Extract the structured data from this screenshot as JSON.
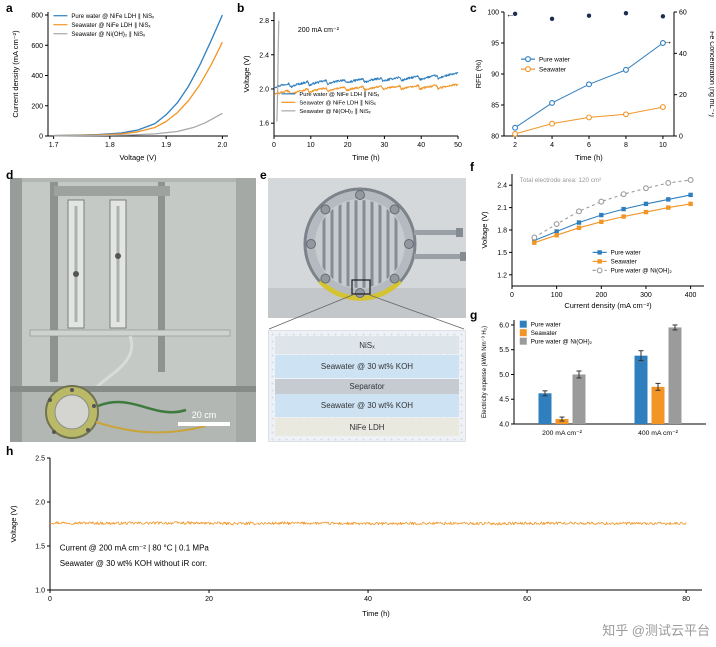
{
  "labels": {
    "a": "a",
    "b": "b",
    "c": "c",
    "d": "d",
    "e": "e",
    "f": "f",
    "g": "g",
    "h": "h"
  },
  "photo_d": {
    "scale_bar": "20 cm"
  },
  "panel_e": {
    "layers": [
      {
        "label": "NiSₓ"
      },
      {
        "label": "Seawater @ 30 wt% KOH"
      },
      {
        "label": "Separator"
      },
      {
        "label": "Seawater @ 30 wt% KOH"
      },
      {
        "label": "NiFe LDH"
      }
    ]
  },
  "watermark": {
    "text": "知乎 @测试云平台"
  },
  "colors": {
    "pure_water": "#2f7fbf",
    "seawater": "#f29526",
    "nioh2": "#9b9b9b",
    "rfe_marker": "#1d2d50"
  },
  "chart_data": [
    {
      "id": "a",
      "type": "line",
      "xlabel": "Voltage (V)",
      "ylabel": "Current density (mA cm⁻²)",
      "xlim": [
        1.69,
        2.01
      ],
      "ylim": [
        0,
        820
      ],
      "xticks": [
        "1.7",
        "1.8",
        "1.9",
        "2.0"
      ],
      "yticks": [
        "0",
        "200",
        "400",
        "600",
        "800"
      ],
      "series": [
        {
          "name": "Pure water @ NiFe LDH ∥ NiSₓ",
          "color": "#2f7fbf",
          "marker": "none",
          "points": [
            [
              1.7,
              3
            ],
            [
              1.74,
              5
            ],
            [
              1.78,
              10
            ],
            [
              1.82,
              20
            ],
            [
              1.85,
              40
            ],
            [
              1.88,
              82
            ],
            [
              1.9,
              140
            ],
            [
              1.92,
              220
            ],
            [
              1.94,
              330
            ],
            [
              1.96,
              470
            ],
            [
              1.98,
              630
            ],
            [
              2.0,
              800
            ]
          ]
        },
        {
          "name": "Seawater @ NiFe LDH ∥ NiSₓ",
          "color": "#f29526",
          "marker": "none",
          "points": [
            [
              1.7,
              2
            ],
            [
              1.74,
              4
            ],
            [
              1.78,
              7
            ],
            [
              1.82,
              14
            ],
            [
              1.85,
              28
            ],
            [
              1.88,
              56
            ],
            [
              1.9,
              96
            ],
            [
              1.92,
              155
            ],
            [
              1.94,
              235
            ],
            [
              1.96,
              340
            ],
            [
              1.98,
              470
            ],
            [
              2.0,
              620
            ]
          ]
        },
        {
          "name": "Seawater @ Ni(OH)₂ ∥ NiSₓ",
          "color": "#a8a8a8",
          "marker": "none",
          "points": [
            [
              1.7,
              1
            ],
            [
              1.78,
              3
            ],
            [
              1.84,
              7
            ],
            [
              1.88,
              14
            ],
            [
              1.92,
              30
            ],
            [
              1.95,
              58
            ],
            [
              1.97,
              88
            ],
            [
              2.0,
              150
            ]
          ]
        }
      ],
      "legend": {
        "nx": 0.03,
        "ny": 0.03,
        "entries": [
          0,
          1,
          2
        ],
        "fs": 6,
        "dy": 9
      }
    },
    {
      "id": "b",
      "type": "line",
      "xlabel": "Time (h)",
      "ylabel": "Voltage (V)",
      "xlim": [
        0,
        50
      ],
      "ylim": [
        1.45,
        2.9
      ],
      "xticks": [
        "0",
        "10",
        "20",
        "30",
        "40",
        "50"
      ],
      "yticks": [
        "1.6",
        "2.0",
        "2.4",
        "2.8"
      ],
      "series": [
        {
          "name": "Pure water @ NiFe LDH ∥ NiSₓ",
          "color": "#2f7fbf",
          "marker": "none",
          "width": 1,
          "noise": {
            "amp": 0.012,
            "n": 400
          },
          "points": [
            [
              0,
              2.02
            ],
            [
              2,
              2.045
            ],
            [
              4,
              2.065
            ],
            [
              4.6,
              2.022
            ],
            [
              6,
              2.05
            ],
            [
              8,
              2.07
            ],
            [
              9.2,
              2.088
            ],
            [
              9.6,
              2.042
            ],
            [
              11,
              2.068
            ],
            [
              13,
              2.088
            ],
            [
              14.2,
              2.098
            ],
            [
              14.6,
              2.058
            ],
            [
              16,
              2.078
            ],
            [
              18,
              2.098
            ],
            [
              19.2,
              2.108
            ],
            [
              19.6,
              2.068
            ],
            [
              21,
              2.088
            ],
            [
              23,
              2.108
            ],
            [
              24.2,
              2.118
            ],
            [
              24.6,
              2.078
            ],
            [
              26,
              2.098
            ],
            [
              28,
              2.118
            ],
            [
              29.2,
              2.128
            ],
            [
              29.6,
              2.088
            ],
            [
              31,
              2.108
            ],
            [
              33,
              2.128
            ],
            [
              34.2,
              2.138
            ],
            [
              34.6,
              2.098
            ],
            [
              36,
              2.118
            ],
            [
              38,
              2.138
            ],
            [
              39.2,
              2.148
            ],
            [
              39.6,
              2.108
            ],
            [
              41,
              2.128
            ],
            [
              43,
              2.148
            ],
            [
              44.2,
              2.158
            ],
            [
              44.6,
              2.118
            ],
            [
              46,
              2.148
            ],
            [
              48,
              2.168
            ],
            [
              49.2,
              2.178
            ],
            [
              50,
              2.185
            ]
          ]
        },
        {
          "name": "Seawater @ NiFe LDH ∥ NiSₓ",
          "color": "#f29526",
          "marker": "none",
          "width": 1,
          "noise": {
            "amp": 0.012,
            "n": 400
          },
          "points": [
            [
              0,
              1.935
            ],
            [
              2,
              1.96
            ],
            [
              4,
              1.98
            ],
            [
              4.6,
              1.937
            ],
            [
              6,
              1.965
            ],
            [
              8,
              1.985
            ],
            [
              9.2,
              2.003
            ],
            [
              9.6,
              1.957
            ],
            [
              11,
              1.983
            ],
            [
              13,
              2.003
            ],
            [
              14.2,
              2.013
            ],
            [
              14.6,
              1.973
            ],
            [
              16,
              1.993
            ],
            [
              18,
              2.013
            ],
            [
              19.2,
              2.023
            ],
            [
              19.6,
              1.983
            ],
            [
              21,
              2.003
            ],
            [
              23,
              2.018
            ],
            [
              24.2,
              2.028
            ],
            [
              24.6,
              1.988
            ],
            [
              26,
              2.008
            ],
            [
              28,
              2.023
            ],
            [
              29.2,
              2.033
            ],
            [
              29.6,
              1.993
            ],
            [
              31,
              2.013
            ],
            [
              33,
              2.028
            ],
            [
              34.2,
              2.038
            ],
            [
              34.6,
              1.998
            ],
            [
              36,
              2.013
            ],
            [
              38,
              2.028
            ],
            [
              39.2,
              2.038
            ],
            [
              39.6,
              1.998
            ],
            [
              41,
              2.018
            ],
            [
              43,
              2.033
            ],
            [
              44.2,
              2.043
            ],
            [
              44.6,
              2.003
            ],
            [
              46,
              2.023
            ],
            [
              48,
              2.043
            ],
            [
              49.2,
              2.048
            ],
            [
              50,
              2.05
            ]
          ]
        },
        {
          "name": "Seawater @ Ni(OH)₂ ∥ NiSₓ",
          "color": "#a8a8a8",
          "marker": "none",
          "width": 1.2,
          "points": [
            [
              0.8,
              1.62
            ],
            [
              1.0,
              2.0
            ],
            [
              1.15,
              2.45
            ],
            [
              1.3,
              2.8
            ]
          ]
        }
      ],
      "legend": {
        "nx": 0.04,
        "ny": 0.66,
        "entries": [
          0,
          1,
          2
        ],
        "fs": 5.8,
        "dy": 8.5
      },
      "annotations": [
        {
          "nx": 0.13,
          "ny": 0.16,
          "text": "200 mA cm⁻²",
          "fs": 7,
          "an": "start"
        }
      ]
    },
    {
      "id": "c",
      "type": "line",
      "xlabel": "Time (h)",
      "ylabel": "RFE (%)",
      "y2label": "Fe Concentration (ng mL⁻¹)",
      "xlim": [
        1.4,
        10.6
      ],
      "ylim": [
        80,
        100
      ],
      "y2lim": [
        0,
        60
      ],
      "xticks": [
        "2",
        "4",
        "6",
        "8",
        "10"
      ],
      "yticks": [
        "80",
        "85",
        "90",
        "95",
        "100"
      ],
      "y2ticks": [
        "0",
        "20",
        "40",
        "60"
      ],
      "series": [
        {
          "name": "RFE",
          "color": "#1d2d50",
          "marker": "circle",
          "line": false,
          "points": [
            [
              2,
              99.7
            ],
            [
              4,
              98.9
            ],
            [
              6,
              99.4
            ],
            [
              8,
              99.8
            ],
            [
              10,
              99.3
            ]
          ]
        },
        {
          "name": "Pure water",
          "color": "#2f7fbf",
          "marker": "circle-open",
          "axis": "y2",
          "width": 1,
          "points": [
            [
              2,
              4
            ],
            [
              4,
              16
            ],
            [
              6,
              25
            ],
            [
              8,
              32
            ],
            [
              10,
              45
            ]
          ]
        },
        {
          "name": "Seawater",
          "color": "#f29526",
          "marker": "circle-open",
          "axis": "y2",
          "width": 1,
          "points": [
            [
              2,
              1
            ],
            [
              4,
              6
            ],
            [
              6,
              9
            ],
            [
              8,
              10.5
            ],
            [
              10,
              14
            ]
          ]
        }
      ],
      "legend": {
        "nx": 0.1,
        "ny": 0.38,
        "entries": [
          1,
          2
        ],
        "fs": 6.4,
        "dy": 10
      },
      "annotations": [
        {
          "nx": 0.01,
          "ny": 0.04,
          "text": "←",
          "fs": 9,
          "an": "start"
        },
        {
          "nx": 0.99,
          "ny": 0.26,
          "text": "→",
          "fs": 9,
          "an": "end"
        }
      ]
    },
    {
      "id": "f",
      "type": "line",
      "xlabel": "Current density (mA cm⁻²)",
      "ylabel": "Voltage (V)",
      "xlim": [
        0,
        430
      ],
      "ylim": [
        1.05,
        2.55
      ],
      "xticks": [
        "0",
        "100",
        "200",
        "300",
        "400"
      ],
      "yticks": [
        "1.2",
        "1.5",
        "1.8",
        "2.1",
        "2.4"
      ],
      "series": [
        {
          "name": "Pure water",
          "color": "#2f7fbf",
          "marker": "square",
          "width": 1.1,
          "points": [
            [
              50,
              1.66
            ],
            [
              100,
              1.78
            ],
            [
              150,
              1.9
            ],
            [
              200,
              2.0
            ],
            [
              250,
              2.08
            ],
            [
              300,
              2.15
            ],
            [
              350,
              2.21
            ],
            [
              400,
              2.27
            ]
          ]
        },
        {
          "name": "Seawater",
          "color": "#f29526",
          "marker": "square",
          "width": 1.1,
          "points": [
            [
              50,
              1.63
            ],
            [
              100,
              1.73
            ],
            [
              150,
              1.83
            ],
            [
              200,
              1.91
            ],
            [
              250,
              1.98
            ],
            [
              300,
              2.04
            ],
            [
              350,
              2.1
            ],
            [
              400,
              2.15
            ]
          ]
        },
        {
          "name": "Pure water @ Ni(OH)₂",
          "color": "#9b9b9b",
          "marker": "circle-open",
          "dash": "3,3",
          "width": 1.1,
          "points": [
            [
              50,
              1.7
            ],
            [
              100,
              1.88
            ],
            [
              150,
              2.05
            ],
            [
              200,
              2.18
            ],
            [
              250,
              2.28
            ],
            [
              300,
              2.36
            ],
            [
              350,
              2.43
            ],
            [
              400,
              2.47
            ]
          ]
        }
      ],
      "legend": {
        "nx": 0.42,
        "ny": 0.7,
        "entries": [
          0,
          1,
          2
        ],
        "fs": 6.2,
        "dy": 9
      },
      "annotations": [
        {
          "nx": 0.04,
          "ny": 0.07,
          "text": "Total electrode area: 120 cm²",
          "fs": 6.3,
          "fill": "#999999",
          "an": "start"
        }
      ]
    },
    {
      "id": "g",
      "type": "bar",
      "ylabel": "Electricity expense (kWh Nm⁻³ H₂)",
      "categories": [
        "200 mA cm⁻²",
        "400 mA cm⁻²"
      ],
      "ylim": [
        4.0,
        6.1
      ],
      "yticks": [
        "4.0",
        "4.5",
        "5.0",
        "5.5",
        "6.0"
      ],
      "series": [
        {
          "name": "Pure water",
          "color": "#2f7fbf",
          "values": [
            4.62,
            5.38
          ],
          "errors": [
            0.05,
            0.1
          ]
        },
        {
          "name": "Seawater",
          "color": "#f29526",
          "values": [
            4.1,
            4.75
          ],
          "errors": [
            0.04,
            0.07
          ]
        },
        {
          "name": "Pure water @ Ni(OH)₂",
          "color": "#9b9b9b",
          "values": [
            5.0,
            5.95
          ],
          "errors": [
            0.07,
            0.05
          ]
        }
      ],
      "legend": {
        "nx": 0.03,
        "ny": 0.05,
        "entries": [
          0,
          1,
          2
        ],
        "fs": 6.2,
        "dy": 8.5,
        "swatch": true
      }
    },
    {
      "id": "h",
      "type": "line",
      "xlabel": "Time (h)",
      "ylabel": "Voltage (V)",
      "xlim": [
        0,
        82
      ],
      "ylim": [
        1.0,
        2.5
      ],
      "xticks": [
        "0",
        "20",
        "40",
        "60",
        "80"
      ],
      "yticks": [
        "1.0",
        "1.5",
        "2.0",
        "2.5"
      ],
      "series": [
        {
          "name": "Seawater @ 30 wt% KOH",
          "color": "#f29526",
          "marker": "none",
          "width": 0.8,
          "noise": {
            "amp": 0.016,
            "n": 800
          },
          "points": [
            [
              0,
              1.765
            ],
            [
              8,
              1.758
            ],
            [
              16,
              1.762
            ],
            [
              24,
              1.755
            ],
            [
              32,
              1.76
            ],
            [
              40,
              1.753
            ],
            [
              48,
              1.758
            ],
            [
              56,
              1.755
            ],
            [
              64,
              1.76
            ],
            [
              72,
              1.756
            ],
            [
              80,
              1.754
            ]
          ]
        }
      ],
      "annotations": [
        {
          "nx": 0.015,
          "ny": 0.7,
          "text": "Current @ 200 mA cm⁻² | 80 °C | 0.1 MPa",
          "fs": 8,
          "an": "start"
        },
        {
          "nx": 0.015,
          "ny": 0.82,
          "text": "Seawater @ 30 wt% KOH without iR corr.",
          "fs": 8,
          "an": "start"
        }
      ]
    }
  ]
}
